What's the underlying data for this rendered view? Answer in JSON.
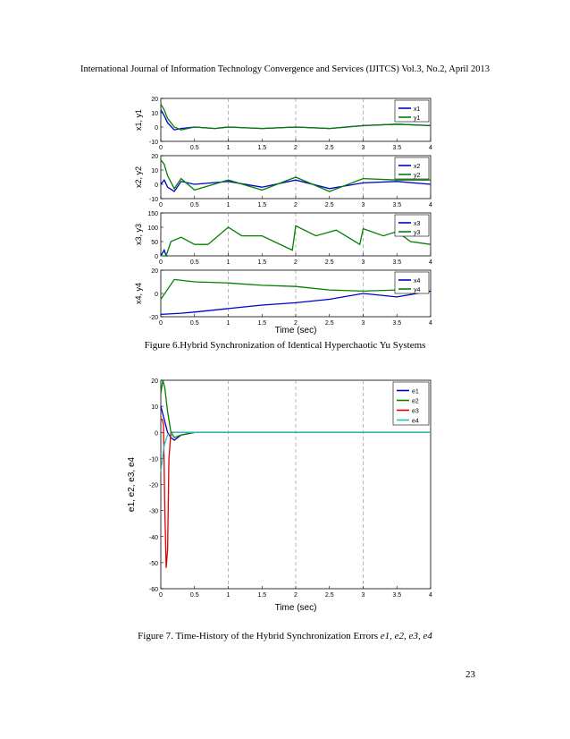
{
  "header": "International Journal of Information Technology Convergence and Services (IJITCS) Vol.3, No.2, April 2013",
  "figure6": {
    "caption": "Figure 6.Hybrid Synchronization of Identical Hyperchaotic Yu Systems",
    "xlabel": "Time (sec)",
    "panels": [
      {
        "ylabel": "x1, y1",
        "legend": [
          "x1",
          "y1"
        ],
        "yticks": [
          "20",
          "10",
          "0",
          "-10"
        ]
      },
      {
        "ylabel": "x2, y2",
        "legend": [
          "x2",
          "y2"
        ],
        "yticks": [
          "20",
          "10",
          "0",
          "-10"
        ]
      },
      {
        "ylabel": "x3, y3",
        "legend": [
          "x3",
          "y3"
        ],
        "yticks": [
          "150",
          "100",
          "50",
          "0"
        ]
      },
      {
        "ylabel": "x4, y4",
        "legend": [
          "x4",
          "y4"
        ],
        "yticks": [
          "20",
          "0",
          "-20"
        ]
      }
    ],
    "xticks": [
      "0",
      "0.5",
      "1",
      "1.5",
      "2",
      "2.5",
      "3",
      "3.5",
      "4"
    ]
  },
  "figure7": {
    "caption_prefix": "Figure 7. Time-History of the Hybrid Synchronization Errors",
    "caption_vars": "e1, e2, e3, e4",
    "xlabel": "Time (sec)",
    "ylabel": "e1, e2, e3, e4",
    "legend": [
      "e1",
      "e2",
      "e3",
      "e4"
    ],
    "yticks": [
      "20",
      "10",
      "0",
      "-10",
      "-20",
      "-30",
      "-40",
      "-50",
      "-60"
    ],
    "xticks": [
      "0",
      "0.5",
      "1",
      "1.5",
      "2",
      "2.5",
      "3",
      "3.5",
      "4"
    ]
  },
  "page_number": "23",
  "chart_data": [
    {
      "type": "line",
      "xlim": [
        0,
        4
      ],
      "ylim": [
        -10,
        20
      ],
      "legend_placement": "top-right",
      "grid": "x-dashed",
      "series": [
        {
          "name": "x1",
          "color": "#0000cc",
          "x": [
            0,
            0.05,
            0.1,
            0.2,
            0.3,
            0.5,
            0.8,
            1,
            1.5,
            2,
            2.5,
            3,
            3.5,
            4
          ],
          "y": [
            12,
            8,
            3,
            -2,
            -1,
            0,
            -1,
            0,
            -1,
            0,
            -1,
            1,
            2,
            1
          ]
        },
        {
          "name": "y1",
          "color": "#008000",
          "x": [
            0,
            0.05,
            0.1,
            0.2,
            0.3,
            0.5,
            0.8,
            1,
            1.5,
            2,
            2.5,
            3,
            3.5,
            4
          ],
          "y": [
            16,
            12,
            6,
            0,
            -2,
            0,
            -1,
            0,
            -1,
            0,
            -1,
            1,
            2,
            1
          ]
        }
      ]
    },
    {
      "type": "line",
      "xlim": [
        0,
        4
      ],
      "ylim": [
        -10,
        20
      ],
      "legend_placement": "top-right",
      "grid": "x-dashed",
      "series": [
        {
          "name": "x2",
          "color": "#0000cc",
          "x": [
            0,
            0.05,
            0.1,
            0.2,
            0.3,
            0.5,
            1,
            1.5,
            2,
            2.5,
            3,
            3.5,
            4
          ],
          "y": [
            0,
            3,
            -2,
            -5,
            2,
            0,
            2,
            -2,
            3,
            -3,
            1,
            2,
            0
          ]
        },
        {
          "name": "y2",
          "color": "#008000",
          "x": [
            0,
            0.05,
            0.1,
            0.2,
            0.3,
            0.5,
            1,
            1.5,
            2,
            2.5,
            3,
            3.5,
            4
          ],
          "y": [
            17,
            14,
            6,
            -3,
            4,
            -4,
            3,
            -4,
            5,
            -5,
            4,
            3,
            3
          ]
        }
      ]
    },
    {
      "type": "line",
      "xlim": [
        0,
        4
      ],
      "ylim": [
        0,
        150
      ],
      "legend_placement": "top-right",
      "grid": "x-dashed",
      "series": [
        {
          "name": "x3",
          "color": "#0000cc",
          "x": [
            0,
            0.05,
            0.08,
            0.1
          ],
          "y": [
            0,
            20,
            0,
            0
          ]
        },
        {
          "name": "y3",
          "color": "#008000",
          "x": [
            0,
            0.08,
            0.15,
            0.3,
            0.5,
            0.7,
            1.0,
            1.2,
            1.5,
            1.95,
            2.0,
            2.3,
            2.6,
            2.95,
            3.0,
            3.3,
            3.5,
            3.7,
            4.0
          ],
          "y": [
            0,
            0,
            50,
            65,
            40,
            40,
            100,
            70,
            70,
            20,
            105,
            70,
            90,
            40,
            95,
            70,
            85,
            50,
            40
          ]
        }
      ]
    },
    {
      "type": "line",
      "xlim": [
        0,
        4
      ],
      "ylim": [
        -20,
        20
      ],
      "legend_placement": "top-right",
      "grid": "x-dashed",
      "series": [
        {
          "name": "x4",
          "color": "#0000cc",
          "x": [
            0,
            0.3,
            0.5,
            1,
            1.5,
            2,
            2.5,
            3,
            3.5,
            4
          ],
          "y": [
            -18,
            -17,
            -16,
            -13,
            -10,
            -8,
            -5,
            0,
            -3,
            2
          ]
        },
        {
          "name": "y4",
          "color": "#008000",
          "x": [
            0,
            0.2,
            0.5,
            1,
            1.5,
            2,
            2.5,
            3,
            3.5
          ],
          "y": [
            -5,
            12,
            10,
            9,
            7,
            6,
            3,
            2,
            3
          ]
        }
      ]
    },
    {
      "type": "line",
      "title": "",
      "xlim": [
        0,
        4
      ],
      "ylim": [
        -60,
        20
      ],
      "legend_placement": "top-right",
      "grid": "x-dashed",
      "series": [
        {
          "name": "e1",
          "color": "#0000cc",
          "x": [
            0,
            0.05,
            0.1,
            0.15,
            0.2,
            0.3,
            0.5,
            1,
            4
          ],
          "y": [
            10,
            5,
            0,
            -2,
            -3,
            -1,
            0,
            0,
            0
          ]
        },
        {
          "name": "e2",
          "color": "#008000",
          "x": [
            0,
            0.03,
            0.06,
            0.1,
            0.15,
            0.2,
            0.3,
            0.5,
            1,
            4
          ],
          "y": [
            15,
            20,
            17,
            8,
            0,
            -2,
            -1,
            0,
            0,
            0
          ]
        },
        {
          "name": "e3",
          "color": "#dd0000",
          "x": [
            0,
            0.02,
            0.04,
            0.06,
            0.08,
            0.1,
            0.12,
            0.15,
            0.2,
            0.3,
            4
          ],
          "y": [
            5,
            5,
            3,
            -30,
            -52,
            -45,
            -10,
            0,
            0,
            0,
            0
          ]
        },
        {
          "name": "e4",
          "color": "#20c0c0",
          "x": [
            0,
            0.05,
            0.1,
            0.2,
            0.3,
            4
          ],
          "y": [
            -15,
            -5,
            -1,
            0,
            0,
            0
          ]
        }
      ]
    }
  ]
}
